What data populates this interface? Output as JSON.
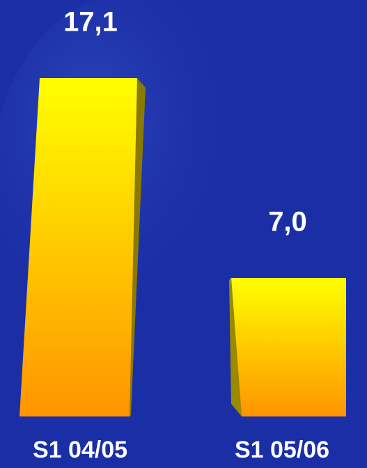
{
  "chart_data": {
    "type": "bar",
    "categories": [
      "S1 04/05",
      "S1 05/06"
    ],
    "values": [
      17.1,
      7.0
    ],
    "value_labels": [
      "17,1",
      "7,0"
    ],
    "color": "#ffee00"
  }
}
